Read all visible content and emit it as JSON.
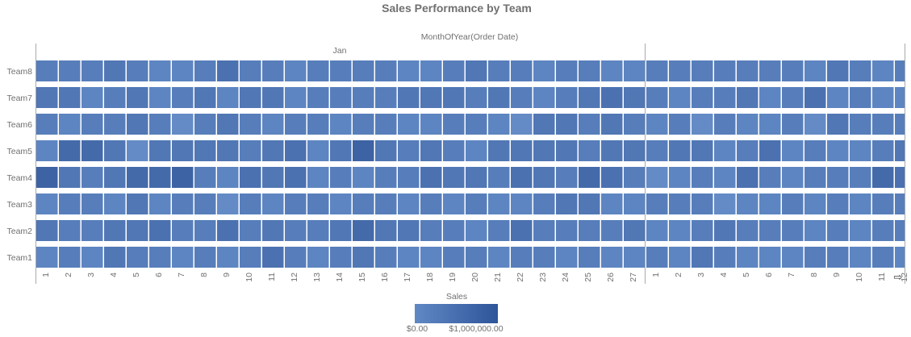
{
  "chart_data": {
    "type": "heatmap",
    "title": "Sales Performance by Team",
    "column_header": "MonthOfYear(Order Date)",
    "groups": [
      {
        "label": "Jan",
        "days": [
          "1",
          "2",
          "3",
          "4",
          "5",
          "6",
          "7",
          "8",
          "9",
          "10",
          "11",
          "12",
          "13",
          "14",
          "15",
          "16",
          "17",
          "18",
          "19",
          "20",
          "21",
          "22",
          "23",
          "24",
          "25",
          "26",
          "27"
        ]
      },
      {
        "label": "",
        "days": [
          "1",
          "2",
          "3",
          "4",
          "5",
          "6",
          "7",
          "8",
          "9",
          "10",
          "11",
          "12"
        ]
      }
    ],
    "rows": [
      "Team8",
      "Team7",
      "Team6",
      "Team5",
      "Team4",
      "Team3",
      "Team2",
      "Team1"
    ],
    "values": [
      [
        300000,
        300000,
        300000,
        400000,
        300000,
        200000,
        200000,
        300000,
        500000,
        300000,
        300000,
        200000,
        300000,
        300000,
        300000,
        300000,
        200000,
        200000,
        300000,
        400000,
        300000,
        300000,
        200000,
        300000,
        300000,
        200000,
        200000,
        300000,
        300000,
        300000,
        300000,
        300000,
        300000,
        300000,
        200000,
        400000,
        300000,
        200000,
        300000
      ],
      [
        400000,
        400000,
        200000,
        300000,
        400000,
        200000,
        300000,
        400000,
        200000,
        400000,
        400000,
        200000,
        300000,
        300000,
        300000,
        300000,
        400000,
        400000,
        400000,
        300000,
        400000,
        300000,
        200000,
        300000,
        400000,
        500000,
        400000,
        300000,
        200000,
        300000,
        300000,
        400000,
        200000,
        300000,
        500000,
        200000,
        300000,
        200000,
        200000
      ],
      [
        300000,
        200000,
        300000,
        300000,
        400000,
        300000,
        100000,
        300000,
        400000,
        300000,
        200000,
        300000,
        300000,
        200000,
        300000,
        300000,
        200000,
        200000,
        300000,
        300000,
        200000,
        100000,
        400000,
        400000,
        300000,
        400000,
        300000,
        200000,
        300000,
        100000,
        300000,
        200000,
        200000,
        300000,
        100000,
        400000,
        300000,
        300000,
        300000
      ],
      [
        200000,
        600000,
        600000,
        400000,
        100000,
        400000,
        400000,
        400000,
        400000,
        300000,
        400000,
        500000,
        200000,
        400000,
        700000,
        400000,
        300000,
        400000,
        300000,
        200000,
        400000,
        400000,
        400000,
        400000,
        300000,
        400000,
        400000,
        300000,
        400000,
        400000,
        200000,
        300000,
        500000,
        200000,
        300000,
        200000,
        200000,
        300000,
        400000
      ],
      [
        700000,
        400000,
        300000,
        400000,
        600000,
        600000,
        700000,
        300000,
        200000,
        500000,
        400000,
        500000,
        200000,
        300000,
        200000,
        300000,
        300000,
        500000,
        400000,
        400000,
        300000,
        500000,
        400000,
        300000,
        600000,
        500000,
        300000,
        100000,
        200000,
        300000,
        200000,
        500000,
        300000,
        200000,
        300000,
        300000,
        300000,
        600000,
        500000
      ],
      [
        200000,
        300000,
        300000,
        200000,
        400000,
        200000,
        300000,
        300000,
        100000,
        300000,
        200000,
        300000,
        300000,
        200000,
        300000,
        300000,
        200000,
        300000,
        200000,
        300000,
        200000,
        200000,
        300000,
        400000,
        400000,
        200000,
        200000,
        300000,
        300000,
        300000,
        100000,
        200000,
        200000,
        300000,
        200000,
        300000,
        200000,
        300000,
        300000
      ],
      [
        400000,
        300000,
        300000,
        400000,
        400000,
        500000,
        300000,
        300000,
        500000,
        300000,
        400000,
        300000,
        300000,
        400000,
        600000,
        400000,
        400000,
        300000,
        300000,
        200000,
        300000,
        500000,
        300000,
        300000,
        300000,
        300000,
        400000,
        200000,
        200000,
        300000,
        400000,
        300000,
        300000,
        300000,
        200000,
        300000,
        200000,
        300000,
        300000
      ],
      [
        200000,
        300000,
        200000,
        400000,
        300000,
        300000,
        200000,
        300000,
        200000,
        300000,
        500000,
        300000,
        200000,
        300000,
        400000,
        300000,
        200000,
        200000,
        300000,
        300000,
        200000,
        300000,
        300000,
        200000,
        300000,
        200000,
        200000,
        300000,
        200000,
        400000,
        300000,
        200000,
        200000,
        200000,
        300000,
        300000,
        200000,
        300000,
        200000
      ]
    ],
    "color_scale": {
      "min": 0,
      "max": 1000000,
      "min_color": "#6a92cc",
      "max_color": "#2b4f93"
    },
    "legend": {
      "title": "Sales",
      "min_label": "$0.00",
      "max_label": "$1,000,000.00",
      "placement": "bottom"
    },
    "scroll_icon": "arrow-right-icon"
  }
}
